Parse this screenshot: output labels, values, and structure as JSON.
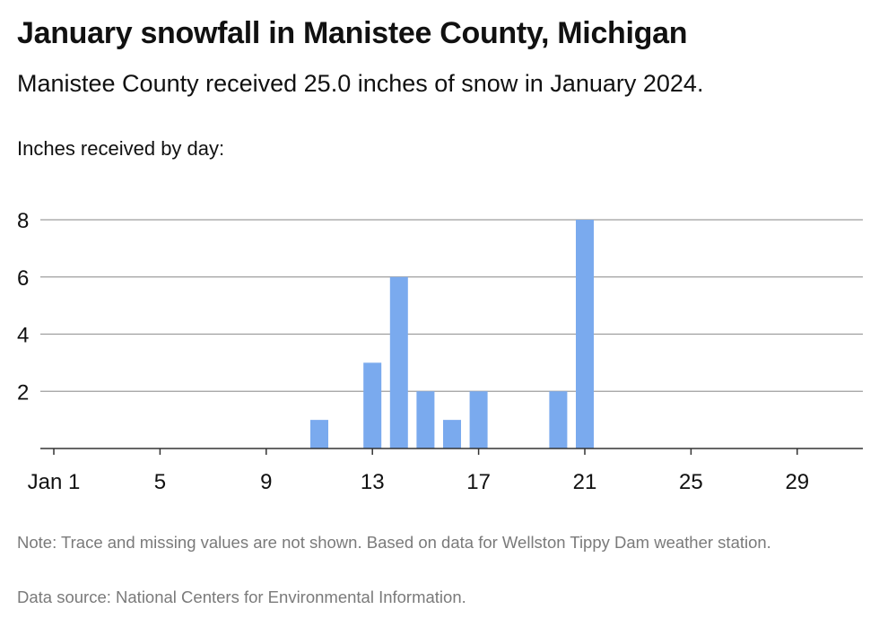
{
  "header": {
    "title": "January snowfall in Manistee County, Michigan",
    "subtitle": "Manistee County received 25.0 inches of snow in January 2024.",
    "axis_caption": "Inches received by day:"
  },
  "footer": {
    "note": "Note: Trace and missing values are not shown. Based on data for Wellston Tippy Dam weather station.",
    "source": "Data source: National Centers for Environmental Information."
  },
  "colors": {
    "bar": "#7aaaee",
    "grid": "#9e9e9e",
    "baseline": "#333333",
    "text": "#111111"
  },
  "chart_data": {
    "type": "bar",
    "title": "January snowfall in Manistee County, Michigan",
    "ylabel": "Inches received by day:",
    "xlabel": "",
    "ylim": [
      0,
      8
    ],
    "yticks": [
      2,
      4,
      6,
      8
    ],
    "xlim": [
      1,
      31
    ],
    "xticks": [
      {
        "day": 1,
        "label": "Jan 1"
      },
      {
        "day": 5,
        "label": "5"
      },
      {
        "day": 9,
        "label": "9"
      },
      {
        "day": 13,
        "label": "13"
      },
      {
        "day": 17,
        "label": "17"
      },
      {
        "day": 21,
        "label": "21"
      },
      {
        "day": 25,
        "label": "25"
      },
      {
        "day": 29,
        "label": "29"
      }
    ],
    "x": [
      11,
      13,
      14,
      15,
      16,
      17,
      20,
      21
    ],
    "values": [
      1,
      3,
      6,
      2,
      1,
      2,
      2,
      8
    ],
    "grid": true,
    "legend": "none"
  }
}
